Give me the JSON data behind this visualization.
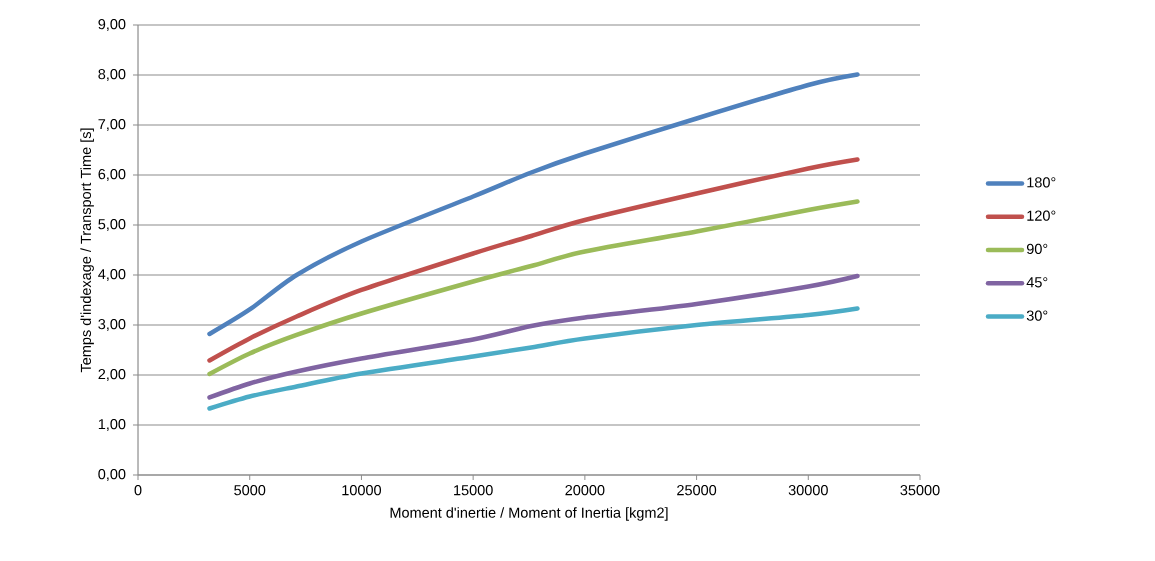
{
  "chart_data": {
    "type": "line",
    "xlabel": "Moment d'inertie / Moment of Inertia [kgm2]",
    "ylabel": "Temps d'indexage  / Transport Time [s]",
    "x": [
      3200,
      5000,
      7100,
      10000,
      15000,
      17600,
      20000,
      25000,
      30000,
      32200
    ],
    "series": [
      {
        "name": "180°",
        "color": "#4f81bd",
        "values": [
          2.82,
          3.31,
          4.0,
          4.67,
          5.57,
          6.05,
          6.43,
          7.13,
          7.8,
          8.01
        ]
      },
      {
        "name": "120°",
        "color": "#c0504d",
        "values": [
          2.29,
          2.73,
          3.17,
          3.7,
          4.43,
          4.78,
          5.1,
          5.63,
          6.13,
          6.31
        ]
      },
      {
        "name": "90°",
        "color": "#9bbb59",
        "values": [
          2.02,
          2.43,
          2.8,
          3.23,
          3.87,
          4.18,
          4.47,
          4.87,
          5.3,
          5.47
        ]
      },
      {
        "name": "45°",
        "color": "#8064a2",
        "values": [
          1.55,
          1.83,
          2.07,
          2.33,
          2.71,
          2.98,
          3.15,
          3.42,
          3.77,
          3.98
        ]
      },
      {
        "name": "30°",
        "color": "#4bacc6",
        "values": [
          1.33,
          1.57,
          1.77,
          2.03,
          2.37,
          2.55,
          2.73,
          3.0,
          3.2,
          3.33
        ]
      }
    ],
    "xlim": [
      0,
      35000
    ],
    "xticks": [
      0,
      5000,
      10000,
      15000,
      20000,
      25000,
      30000,
      35000
    ],
    "ylim": [
      0,
      9
    ],
    "yticks": [
      {
        "value": 0,
        "label": "0,00"
      },
      {
        "value": 1,
        "label": "1,00"
      },
      {
        "value": 2,
        "label": "2,00"
      },
      {
        "value": 3,
        "label": "3,00"
      },
      {
        "value": 4,
        "label": "4,00"
      },
      {
        "value": 5,
        "label": "5,00"
      },
      {
        "value": 6,
        "label": "6,00"
      },
      {
        "value": 7,
        "label": "7,00"
      },
      {
        "value": 8,
        "label": "8,00"
      },
      {
        "value": 9,
        "label": "9,00"
      }
    ],
    "grid": "y",
    "legend": "right",
    "marker": "none",
    "line_style": "solid"
  }
}
